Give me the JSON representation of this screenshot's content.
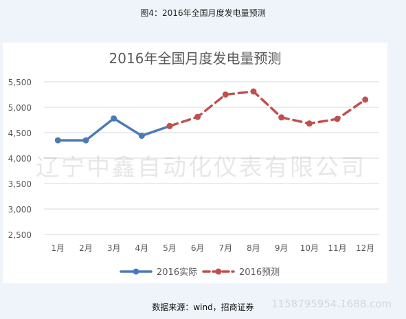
{
  "figure_caption": "图4：2016年全国月度发电量预测",
  "source_text": "数据来源：wind，招商证券",
  "watermark_text": "辽宁中鑫自动化仪表有限公司",
  "watermark_url": "1158795954.1688.com",
  "colors": {
    "actual": "#4a7ab8",
    "forecast": "#c0504d",
    "grid": "#d9d9d9",
    "axis_text": "#595959",
    "title_text": "#595959"
  },
  "chart_data": {
    "type": "line",
    "title": "2016年全国月度发电量预测",
    "categories": [
      "1月",
      "2月",
      "3月",
      "4月",
      "5月",
      "6月",
      "7月",
      "8月",
      "9月",
      "10月",
      "11月",
      "12月"
    ],
    "y_ticks": [
      "2,500",
      "3,000",
      "3,500",
      "4,000",
      "4,500",
      "5,000",
      "5,500"
    ],
    "ylim": [
      2500,
      5500
    ],
    "grid": true,
    "legend_position": "bottom",
    "series": [
      {
        "name": "2016实际",
        "style": "solid",
        "values": [
          4350,
          4350,
          4780,
          4440,
          4630,
          null,
          null,
          null,
          null,
          null,
          null,
          null
        ]
      },
      {
        "name": "2016预测",
        "style": "dashed",
        "values": [
          null,
          null,
          null,
          null,
          4630,
          4810,
          5250,
          5310,
          4800,
          4680,
          4770,
          5150
        ]
      }
    ]
  }
}
